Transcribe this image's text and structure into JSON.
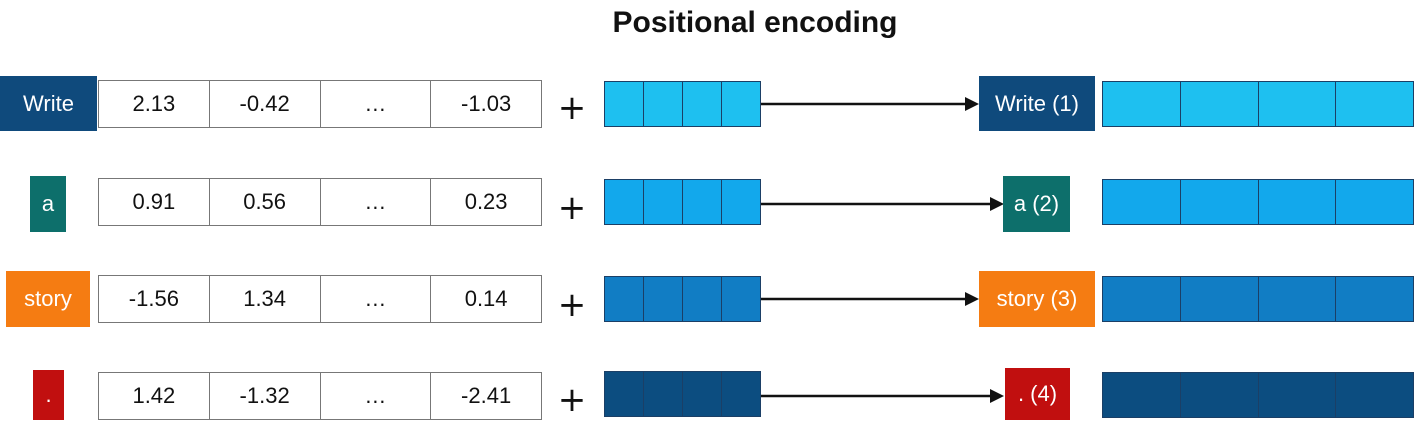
{
  "title": "Positional encoding",
  "plus_symbol": "+",
  "rows": [
    {
      "token": "Write",
      "token_color": "#0f4a7c",
      "embedding": [
        "2.13",
        "-0.42",
        "…",
        "-1.03"
      ],
      "position_color": "#1ec0f0",
      "output_token": "Write (1)",
      "output_color": "#1ec0f0"
    },
    {
      "token": "a",
      "token_color": "#0d6f6b",
      "embedding": [
        "0.91",
        "0.56",
        "…",
        "0.23"
      ],
      "position_color": "#12a8ec",
      "output_token": "a (2)",
      "output_color": "#12a8ec"
    },
    {
      "token": "story",
      "token_color": "#f57c12",
      "embedding": [
        "-1.56",
        "1.34",
        "…",
        "0.14"
      ],
      "position_color": "#117dc4",
      "output_token": "story (3)",
      "output_color": "#117dc4"
    },
    {
      "token": ".",
      "token_color": "#c10f0f",
      "embedding": [
        "1.42",
        "-1.32",
        "…",
        "-2.41"
      ],
      "position_color": "#0c4d80",
      "output_token": ". (4)",
      "output_color": "#0c4d80"
    }
  ]
}
